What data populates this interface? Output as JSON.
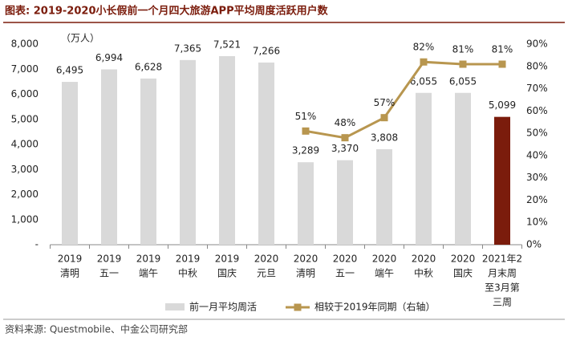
{
  "chart_data": {
    "type": "combo",
    "title": "图表: 2019-2020小长假前一个月四大旅游APP平均周度活跃用户数",
    "unit_label": "（万人）",
    "source": "资料来源: Questmobile、中金公司研究部",
    "categories": [
      [
        "2019",
        "清明"
      ],
      [
        "2019",
        "五一"
      ],
      [
        "2019",
        "端午"
      ],
      [
        "2019",
        "中秋"
      ],
      [
        "2019",
        "国庆"
      ],
      [
        "2020",
        "元旦"
      ],
      [
        "2020",
        "清明"
      ],
      [
        "2020",
        "五一"
      ],
      [
        "2020",
        "端午"
      ],
      [
        "2020",
        "中秋"
      ],
      [
        "2020",
        "国庆"
      ],
      [
        "2021年2",
        "月末周",
        "至3月第",
        "三周"
      ]
    ],
    "series": [
      {
        "name": "前一月平均周活",
        "type": "bar",
        "colors": [
          "#d9d9d9",
          "#d9d9d9",
          "#d9d9d9",
          "#d9d9d9",
          "#d9d9d9",
          "#d9d9d9",
          "#d9d9d9",
          "#d9d9d9",
          "#d9d9d9",
          "#d9d9d9",
          "#d9d9d9",
          "#7b1c0c"
        ],
        "values": [
          6495,
          6994,
          6628,
          7365,
          7521,
          7266,
          3289,
          3370,
          3808,
          6055,
          6055,
          5099
        ],
        "value_labels": [
          "6,495",
          "6,994",
          "6,628",
          "7,365",
          "7,521",
          "7,266",
          "3,289",
          "3,370",
          "3,808",
          "6,055",
          "6,055",
          "5,099"
        ]
      },
      {
        "name": "相较于2019年同期（右轴）",
        "type": "line",
        "axis": "y2",
        "color": "#b8964f",
        "values": [
          null,
          null,
          null,
          null,
          null,
          null,
          51,
          48,
          57,
          82,
          81,
          81
        ],
        "value_labels": [
          null,
          null,
          null,
          null,
          null,
          null,
          "51%",
          "48%",
          "57%",
          "82%",
          "81%",
          "81%"
        ]
      }
    ],
    "ylim": [
      0,
      8000
    ],
    "yticks": [
      {
        "value": 0,
        "label": "-"
      },
      {
        "value": 1000,
        "label": "1,000"
      },
      {
        "value": 2000,
        "label": "2,000"
      },
      {
        "value": 3000,
        "label": "3,000"
      },
      {
        "value": 4000,
        "label": "4,000"
      },
      {
        "value": 5000,
        "label": "5,000"
      },
      {
        "value": 6000,
        "label": "6,000"
      },
      {
        "value": 7000,
        "label": "7,000"
      },
      {
        "value": 8000,
        "label": "8,000"
      }
    ],
    "y2lim": [
      0,
      90
    ],
    "y2ticks": [
      {
        "value": 0,
        "label": "0%"
      },
      {
        "value": 10,
        "label": "10%"
      },
      {
        "value": 20,
        "label": "20%"
      },
      {
        "value": 30,
        "label": "30%"
      },
      {
        "value": 40,
        "label": "40%"
      },
      {
        "value": 50,
        "label": "50%"
      },
      {
        "value": 60,
        "label": "60%"
      },
      {
        "value": 70,
        "label": "70%"
      },
      {
        "value": 80,
        "label": "80%"
      },
      {
        "value": 90,
        "label": "90%"
      }
    ]
  }
}
